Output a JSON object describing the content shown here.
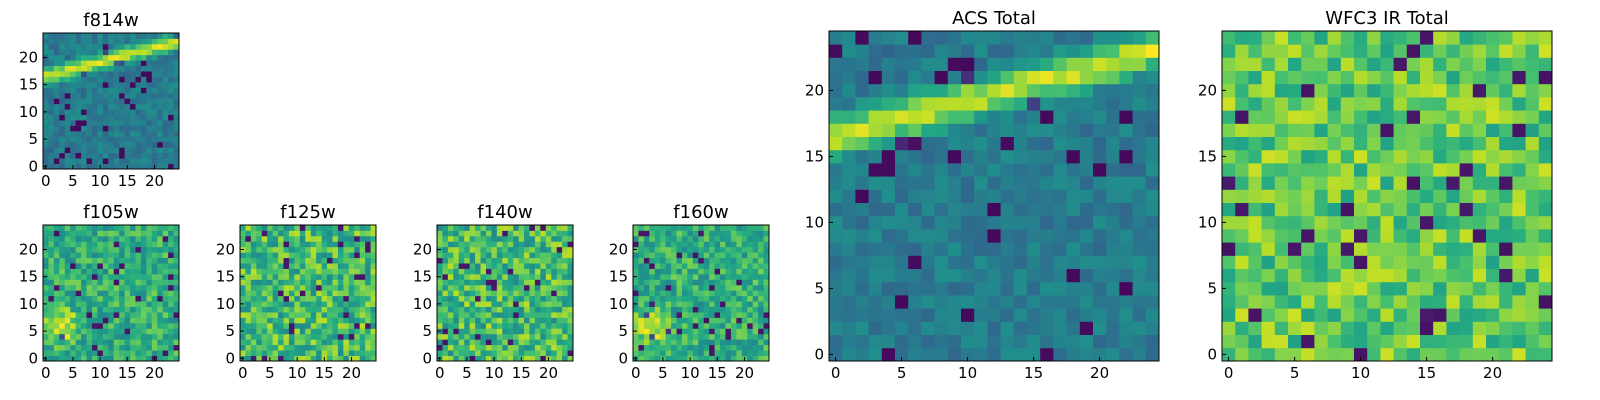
{
  "chart_data": [
    {
      "type": "heatmap",
      "title": "f814w",
      "grid": "25x25",
      "xlim": [
        -0.5,
        24.5
      ],
      "ylim": [
        -0.5,
        24.5
      ],
      "xticks": [
        "0",
        "5",
        "10",
        "15",
        "20"
      ],
      "yticks": [
        "0",
        "5",
        "10",
        "15",
        "20"
      ],
      "colormap": "viridis",
      "feature": "bright diagonal arc crossing upper rows",
      "seed": 11
    },
    {
      "type": "heatmap",
      "title": "f105w",
      "grid": "25x25",
      "xlim": [
        -0.5,
        24.5
      ],
      "ylim": [
        -0.5,
        24.5
      ],
      "xticks": [
        "0",
        "5",
        "10",
        "15",
        "20"
      ],
      "yticks": [
        "0",
        "5",
        "10",
        "15",
        "20"
      ],
      "colormap": "viridis",
      "feature": "bright blob lower-left",
      "seed": 21
    },
    {
      "type": "heatmap",
      "title": "f125w",
      "grid": "25x25",
      "xlim": [
        -0.5,
        24.5
      ],
      "ylim": [
        -0.5,
        24.5
      ],
      "xticks": [
        "0",
        "5",
        "10",
        "15",
        "20"
      ],
      "yticks": [
        "0",
        "5",
        "10",
        "15",
        "20"
      ],
      "colormap": "viridis",
      "feature": "noisy field",
      "seed": 31
    },
    {
      "type": "heatmap",
      "title": "f140w",
      "grid": "25x25",
      "xlim": [
        -0.5,
        24.5
      ],
      "ylim": [
        -0.5,
        24.5
      ],
      "xticks": [
        "0",
        "5",
        "10",
        "15",
        "20"
      ],
      "yticks": [
        "0",
        "5",
        "10",
        "15",
        "20"
      ],
      "colormap": "viridis",
      "feature": "noisy field",
      "seed": 41
    },
    {
      "type": "heatmap",
      "title": "f160w",
      "grid": "25x25",
      "xlim": [
        -0.5,
        24.5
      ],
      "ylim": [
        -0.5,
        24.5
      ],
      "xticks": [
        "0",
        "5",
        "10",
        "15",
        "20"
      ],
      "yticks": [
        "0",
        "5",
        "10",
        "15",
        "20"
      ],
      "colormap": "viridis",
      "feature": "bright blob lower-left",
      "seed": 51
    },
    {
      "type": "heatmap",
      "title": "ACS Total",
      "grid": "25x25",
      "xlim": [
        -0.5,
        24.5
      ],
      "ylim": [
        -0.5,
        24.5
      ],
      "xticks": [
        "0",
        "5",
        "10",
        "15",
        "20"
      ],
      "yticks": [
        "0",
        "5",
        "10",
        "15",
        "20"
      ],
      "colormap": "viridis",
      "feature": "bright diagonal arc crossing upper rows",
      "seed": 61
    },
    {
      "type": "heatmap",
      "title": "WFC3 IR Total",
      "grid": "25x25",
      "xlim": [
        -0.5,
        24.5
      ],
      "ylim": [
        -0.5,
        24.5
      ],
      "xticks": [
        "0",
        "5",
        "10",
        "15",
        "20"
      ],
      "yticks": [
        "0",
        "5",
        "10",
        "15",
        "20"
      ],
      "colormap": "viridis",
      "feature": "bright field with scattered dark pixels",
      "seed": 71
    }
  ]
}
